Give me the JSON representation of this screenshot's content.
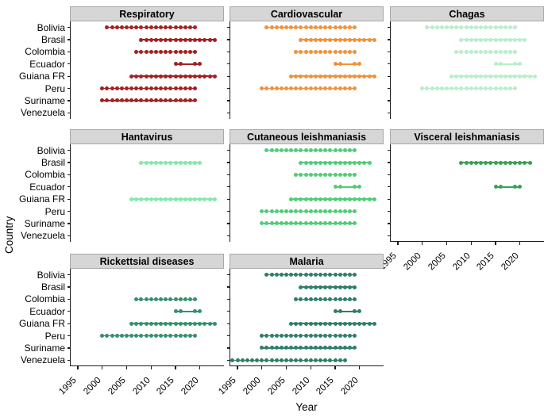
{
  "figure_title": "",
  "x_axis": {
    "title": "Year",
    "ticks": [
      1995,
      2000,
      2005,
      2010,
      2015,
      2020
    ]
  },
  "y_axis": {
    "title": "Country",
    "categories": [
      "Bolivia",
      "Brasil",
      "Colombia",
      "Ecuador",
      "Guiana FR",
      "Peru",
      "Suriname",
      "Venezuela"
    ]
  },
  "style": {
    "strip_background": "#d6d6d6",
    "axis_color": "#1a1a1a",
    "background": "#ffffff"
  },
  "chart_data": {
    "type": "scatter",
    "subtype": "timeline-dot-plot",
    "title": "",
    "xlabel": "Year",
    "ylabel": "Country",
    "xlim": [
      1993,
      2025
    ],
    "grid": false,
    "legend": "none",
    "x_ticks": [
      1995,
      2000,
      2005,
      2010,
      2015,
      2020
    ],
    "categories": [
      "Bolivia",
      "Brasil",
      "Colombia",
      "Ecuador",
      "Guiana FR",
      "Peru",
      "Suriname",
      "Venezuela"
    ],
    "panels": [
      {
        "title": "Respiratory",
        "color": "#a32121",
        "row": 0,
        "col": 0,
        "show_x_axis": false,
        "series": [
          {
            "country": "Bolivia",
            "segments": [
              [
                2001,
                2019
              ]
            ]
          },
          {
            "country": "Brasil",
            "segments": [
              [
                2008,
                2023
              ]
            ]
          },
          {
            "country": "Colombia",
            "segments": [
              [
                2007,
                2019
              ]
            ]
          },
          {
            "country": "Ecuador",
            "segments": [
              [
                2015,
                2016
              ],
              [
                2019,
                2020
              ]
            ]
          },
          {
            "country": "Guiana FR",
            "segments": [
              [
                2006,
                2023
              ]
            ]
          },
          {
            "country": "Peru",
            "segments": [
              [
                2000,
                2019
              ]
            ]
          },
          {
            "country": "Suriname",
            "segments": [
              [
                2000,
                2019
              ]
            ]
          }
        ]
      },
      {
        "title": "Cardiovascular",
        "color": "#f0923c",
        "row": 0,
        "col": 1,
        "show_x_axis": false,
        "series": [
          {
            "country": "Bolivia",
            "segments": [
              [
                2001,
                2019
              ]
            ]
          },
          {
            "country": "Brasil",
            "segments": [
              [
                2008,
                2023
              ]
            ]
          },
          {
            "country": "Colombia",
            "segments": [
              [
                2007,
                2019
              ]
            ]
          },
          {
            "country": "Ecuador",
            "segments": [
              [
                2015,
                2016
              ],
              [
                2019,
                2020
              ]
            ]
          },
          {
            "country": "Guiana FR",
            "segments": [
              [
                2006,
                2023
              ]
            ]
          },
          {
            "country": "Peru",
            "segments": [
              [
                2000,
                2019
              ]
            ]
          }
        ]
      },
      {
        "title": "Chagas",
        "color": "#b9eeca",
        "row": 0,
        "col": 2,
        "show_x_axis": false,
        "series": [
          {
            "country": "Bolivia",
            "segments": [
              [
                2001,
                2019
              ]
            ]
          },
          {
            "country": "Brasil",
            "segments": [
              [
                2008,
                2021
              ]
            ]
          },
          {
            "country": "Colombia",
            "segments": [
              [
                2007,
                2019
              ]
            ]
          },
          {
            "country": "Ecuador",
            "segments": [
              [
                2015,
                2016
              ],
              [
                2019,
                2020
              ]
            ]
          },
          {
            "country": "Guiana FR",
            "segments": [
              [
                2006,
                2023
              ]
            ]
          },
          {
            "country": "Peru",
            "segments": [
              [
                2000,
                2019
              ]
            ]
          }
        ]
      },
      {
        "title": "Hantavirus",
        "color": "#82e9aa",
        "row": 1,
        "col": 0,
        "show_x_axis": false,
        "series": [
          {
            "country": "Brasil",
            "segments": [
              [
                2008,
                2020
              ]
            ]
          },
          {
            "country": "Guiana FR",
            "segments": [
              [
                2006,
                2023
              ]
            ]
          }
        ]
      },
      {
        "title": "Cutaneous leishmaniasis",
        "color": "#4fcd78",
        "row": 1,
        "col": 1,
        "show_x_axis": false,
        "series": [
          {
            "country": "Bolivia",
            "segments": [
              [
                2001,
                2019
              ]
            ]
          },
          {
            "country": "Brasil",
            "segments": [
              [
                2008,
                2022
              ]
            ]
          },
          {
            "country": "Colombia",
            "segments": [
              [
                2007,
                2019
              ]
            ]
          },
          {
            "country": "Ecuador",
            "segments": [
              [
                2015,
                2016
              ],
              [
                2019,
                2020
              ]
            ]
          },
          {
            "country": "Guiana FR",
            "segments": [
              [
                2006,
                2023
              ]
            ]
          },
          {
            "country": "Peru",
            "segments": [
              [
                2000,
                2019
              ]
            ]
          },
          {
            "country": "Suriname",
            "segments": [
              [
                2000,
                2019
              ]
            ]
          }
        ]
      },
      {
        "title": "Visceral leishmaniasis",
        "color": "#38a156",
        "row": 1,
        "col": 2,
        "show_x_axis": true,
        "series": [
          {
            "country": "Brasil",
            "segments": [
              [
                2008,
                2022
              ]
            ]
          },
          {
            "country": "Ecuador",
            "segments": [
              [
                2015,
                2016
              ],
              [
                2019,
                2020
              ]
            ]
          }
        ]
      },
      {
        "title": "Rickettsial diseases",
        "color": "#35916c",
        "row": 2,
        "col": 0,
        "show_x_axis": true,
        "series": [
          {
            "country": "Colombia",
            "segments": [
              [
                2007,
                2019
              ]
            ]
          },
          {
            "country": "Ecuador",
            "segments": [
              [
                2015,
                2016
              ],
              [
                2019,
                2020
              ]
            ]
          },
          {
            "country": "Guiana FR",
            "segments": [
              [
                2006,
                2023
              ]
            ]
          },
          {
            "country": "Peru",
            "segments": [
              [
                2000,
                2019
              ]
            ]
          }
        ]
      },
      {
        "title": "Malaria",
        "color": "#2f7e68",
        "row": 2,
        "col": 1,
        "show_x_axis": true,
        "series": [
          {
            "country": "Bolivia",
            "segments": [
              [
                2001,
                2019
              ]
            ]
          },
          {
            "country": "Brasil",
            "segments": [
              [
                2008,
                2019
              ]
            ]
          },
          {
            "country": "Colombia",
            "segments": [
              [
                2007,
                2019
              ]
            ]
          },
          {
            "country": "Ecuador",
            "segments": [
              [
                2015,
                2016
              ],
              [
                2019,
                2020
              ]
            ]
          },
          {
            "country": "Guiana FR",
            "segments": [
              [
                2006,
                2023
              ]
            ]
          },
          {
            "country": "Peru",
            "segments": [
              [
                2000,
                2019
              ]
            ]
          },
          {
            "country": "Suriname",
            "segments": [
              [
                2000,
                2019
              ]
            ]
          },
          {
            "country": "Venezuela",
            "segments": [
              [
                1994,
                2017
              ]
            ]
          }
        ]
      }
    ]
  }
}
